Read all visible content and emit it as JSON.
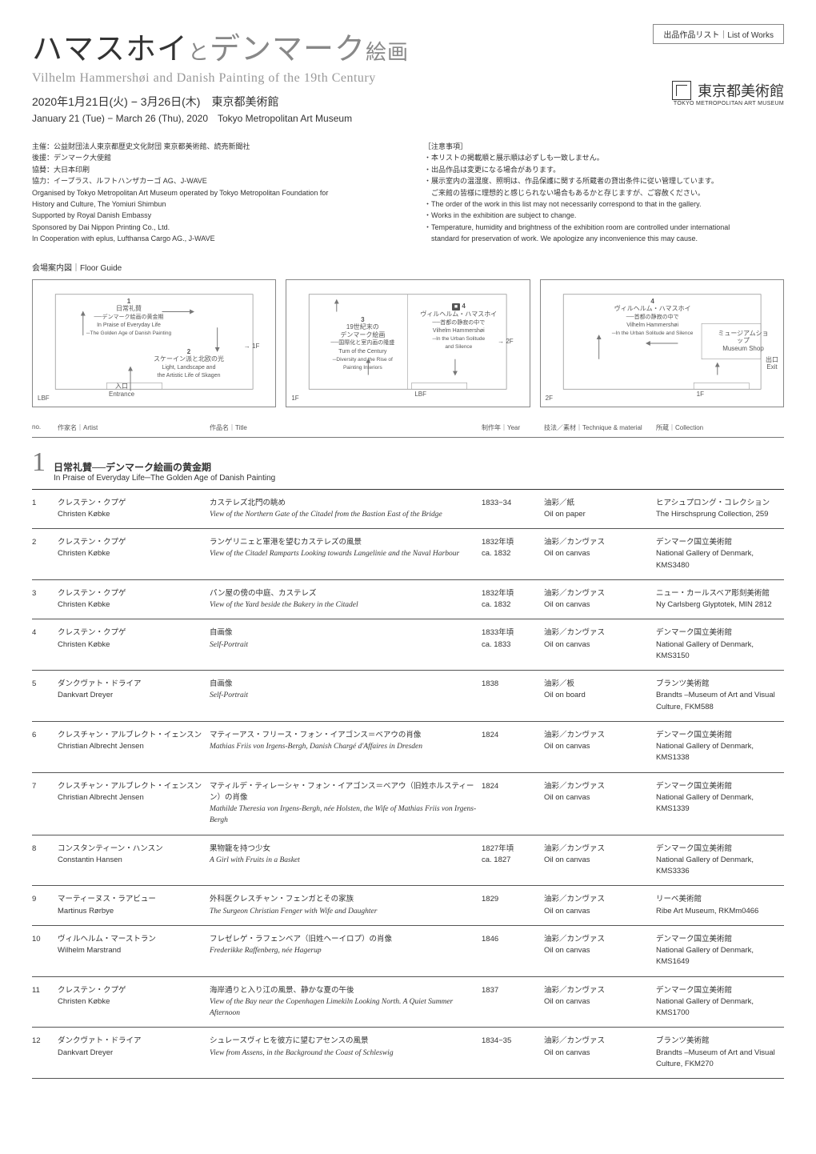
{
  "badge": "出品作品リスト｜List of Works",
  "title_jp_parts": {
    "main": "ハマスホイ",
    "to": "と",
    "danmark": "デンマーク",
    "kaiga": "絵画"
  },
  "subtitle_en": "Vilhelm Hammershøi and Danish Painting of the 19th Century",
  "dates_jp": "2020年1月21日(火) − 3月26日(木)　東京都美術館",
  "dates_en": "January 21 (Tue) − March 26 (Thu), 2020　Tokyo Metropolitan Art Museum",
  "museum": {
    "jp": "東京都美術館",
    "en": "TOKYO METROPOLITAN ART MUSEUM"
  },
  "credits_left": [
    "主催：公益財団法人東京都歴史文化財団 東京都美術館、読売新聞社",
    "後援：デンマーク大使館",
    "協賛：大日本印刷",
    "協力：イープラス、ルフトハンザカーゴ AG、J-WAVE",
    "Organised by Tokyo Metropolitan Art Museum operated by Tokyo Metropolitan Foundation for",
    "History and Culture, The Yomiuri Shimbun",
    "Supported by Royal Danish Embassy",
    "Sponsored by Dai Nippon Printing Co., Ltd.",
    "In Cooperation with eplus, Lufthansa Cargo AG., J-WAVE"
  ],
  "notes_header": "［注意事項］",
  "notes": [
    "・本リストの掲載順と展示順は必ずしも一致しません。",
    "・出品作品は変更になる場合があります。",
    "・展示室内の温湿度、照明は、作品保護に関する所蔵者の貸出条件に従い管理しています。",
    "　ご来館の皆様に理想的と感じられない場合もあるかと存じますが、ご容赦ください。",
    "・The order of the work in this list may not necessarily correspond to that in the gallery.",
    "・Works in the exhibition are subject to change.",
    "・Temperature, humidity and brightness of the exhibition room are controlled under international",
    "　standard for preservation of work. We apologize any inconvenience this may cause."
  ],
  "floor_guide_label": "会場案内図｜Floor Guide",
  "maps": {
    "lbf": {
      "floor": "LBF",
      "entrance": "入口\nEntrance",
      "rooms": [
        {
          "num": "1",
          "jp": "日常礼賛",
          "sub_jp": "──デンマーク絵画の黄金期",
          "en": "In Praise of Everyday Life",
          "sub_en": "─The Golden Age of Danish Painting"
        },
        {
          "num": "2",
          "jp": "スケーイン派と北欧の光",
          "en": "Light, Landscape and\nthe Artistic Life of Skagen"
        }
      ],
      "to": "→ 1F"
    },
    "f1": {
      "floor": "1F",
      "lbf": "LBF",
      "rooms": [
        {
          "num": "3",
          "jp": "19世紀末の\nデンマーク絵画",
          "sub_jp": "──国際化と室内画の隆盛",
          "en": "Turn of the Century",
          "sub_en": "─Diversity and the Rise of\nPainting Interiors"
        },
        {
          "num": "4",
          "jp": "ヴィルヘルム・ハマスホイ",
          "sub_jp": "──首都の静寂の中で",
          "en": "Vilhelm Hammershøi",
          "sub_en": "─In the Urban Solitude\nand Silence"
        }
      ],
      "to": "→ 2F"
    },
    "f2": {
      "floor": "2F",
      "from": "1F",
      "rooms": [
        {
          "num": "4",
          "jp": "ヴィルヘルム・ハマスホイ",
          "sub_jp": "──首都の静寂の中で",
          "en": "Vilhelm Hammershøi",
          "sub_en": "─In the Urban Solitude and Silence"
        }
      ],
      "shop": "ミュージアムショップ\nMuseum Shop",
      "exit": "出口\nExit"
    }
  },
  "columns": {
    "no": "no.",
    "artist": "作家名｜Artist",
    "title": "作品名｜Title",
    "year": "制作年｜Year",
    "technique": "技法／素材｜Technique & material",
    "collection": "所蔵｜Collection"
  },
  "section1": {
    "num": "1",
    "jp": "日常礼賛──デンマーク絵画の黄金期",
    "en": "In Praise of Everyday Life─The Golden Age of Danish Painting"
  },
  "works": [
    {
      "no": "1",
      "artist_jp": "クレステン・クプゲ",
      "artist_en": "Christen Købke",
      "title_jp": "カステレズ北門の眺め",
      "title_en": "View of the Northern Gate of the Citadel from the Bastion East of the Bridge",
      "year": "1833−34",
      "tech_jp": "油彩／紙",
      "tech_en": "Oil on paper",
      "coll_jp": "ヒアシュプロング・コレクション",
      "coll_en": "The Hirschsprung Collection, 259"
    },
    {
      "no": "2",
      "artist_jp": "クレステン・クプゲ",
      "artist_en": "Christen Købke",
      "title_jp": "ランゲリニェと軍港を望むカステレズの風景",
      "title_en": "View of the Citadel Ramparts Looking towards Langelinie and the Naval Harbour",
      "year": "1832年頃\nca. 1832",
      "tech_jp": "油彩／カンヴァス",
      "tech_en": "Oil on canvas",
      "coll_jp": "デンマーク国立美術館",
      "coll_en": "National Gallery of Denmark, KMS3480"
    },
    {
      "no": "3",
      "artist_jp": "クレステン・クプゲ",
      "artist_en": "Christen Købke",
      "title_jp": "パン屋の傍の中庭、カステレズ",
      "title_en": "View of the Yard beside the Bakery in the Citadel",
      "year": "1832年頃\nca. 1832",
      "tech_jp": "油彩／カンヴァス",
      "tech_en": "Oil on canvas",
      "coll_jp": "ニュー・カールスベア彫刻美術館",
      "coll_en": "Ny Carlsberg Glyptotek, MIN 2812"
    },
    {
      "no": "4",
      "artist_jp": "クレステン・クプゲ",
      "artist_en": "Christen Købke",
      "title_jp": "自画像",
      "title_en": "Self-Portrait",
      "year": "1833年頃\nca. 1833",
      "tech_jp": "油彩／カンヴァス",
      "tech_en": "Oil on canvas",
      "coll_jp": "デンマーク国立美術館",
      "coll_en": "National Gallery of Denmark, KMS3150"
    },
    {
      "no": "5",
      "artist_jp": "ダンクヴァト・ドライア",
      "artist_en": "Dankvart Dreyer",
      "title_jp": "自画像",
      "title_en": "Self-Portrait",
      "year": "1838",
      "tech_jp": "油彩／板",
      "tech_en": "Oil on board",
      "coll_jp": "ブランツ美術館",
      "coll_en": "Brandts –Museum of Art and Visual Culture, FKM588"
    },
    {
      "no": "6",
      "artist_jp": "クレスチャン・アルブレクト・イェンスン",
      "artist_en": "Christian Albrecht Jensen",
      "title_jp": "マティーアス・フリース・フォン・イアゴンス＝ベアウの肖像",
      "title_en": "Mathias Friis von Irgens-Bergh, Danish Chargé d'Affaires in Dresden",
      "year": "1824",
      "tech_jp": "油彩／カンヴァス",
      "tech_en": "Oil on canvas",
      "coll_jp": "デンマーク国立美術館",
      "coll_en": "National Gallery of Denmark, KMS1338"
    },
    {
      "no": "7",
      "artist_jp": "クレスチャン・アルブレクト・イェンスン",
      "artist_en": "Christian Albrecht Jensen",
      "title_jp": "マティルデ・ティレーシャ・フォン・イアゴンス＝ベアウ（旧姓ホルスティーン）の肖像",
      "title_en": "Mathilde Theresia von Irgens-Bergh, née Holsten, the Wife of Mathias Friis von Irgens-Bergh",
      "year": "1824",
      "tech_jp": "油彩／カンヴァス",
      "tech_en": "Oil on canvas",
      "coll_jp": "デンマーク国立美術館",
      "coll_en": "National Gallery of Denmark, KMS1339"
    },
    {
      "no": "8",
      "artist_jp": "コンスタンティーン・ハンスン",
      "artist_en": "Constantin Hansen",
      "title_jp": "果物籠を持つ少女",
      "title_en": "A Girl with Fruits in a Basket",
      "year": "1827年頃\nca. 1827",
      "tech_jp": "油彩／カンヴァス",
      "tech_en": "Oil on canvas",
      "coll_jp": "デンマーク国立美術館",
      "coll_en": "National Gallery of Denmark, KMS3336"
    },
    {
      "no": "9",
      "artist_jp": "マーティーヌス・ラアビュー",
      "artist_en": "Martinus Rørbye",
      "title_jp": "外科医クレスチャン・フェンガとその家族",
      "title_en": "The Surgeon Christian Fenger with Wife and Daughter",
      "year": "1829",
      "tech_jp": "油彩／カンヴァス",
      "tech_en": "Oil on canvas",
      "coll_jp": "リーベ美術館",
      "coll_en": "Ribe Art Museum, RKMm0466"
    },
    {
      "no": "10",
      "artist_jp": "ヴィルヘルム・マーストラン",
      "artist_en": "Wilhelm Marstrand",
      "title_jp": "フレゼレゲ・ラフェンベア（旧姓ヘーイロプ）の肖像",
      "title_en": "Frederikke Raffenberg, née Hagerup",
      "year": "1846",
      "tech_jp": "油彩／カンヴァス",
      "tech_en": "Oil on canvas",
      "coll_jp": "デンマーク国立美術館",
      "coll_en": "National Gallery of Denmark, KMS1649"
    },
    {
      "no": "11",
      "artist_jp": "クレステン・クプゲ",
      "artist_en": "Christen Købke",
      "title_jp": "海岸通りと入り江の風景、静かな夏の午後",
      "title_en": "View of the Bay near the Copenhagen Limekiln Looking North. A Quiet Summer Afternoon",
      "year": "1837",
      "tech_jp": "油彩／カンヴァス",
      "tech_en": "Oil on canvas",
      "coll_jp": "デンマーク国立美術館",
      "coll_en": "National Gallery of Denmark, KMS1700"
    },
    {
      "no": "12",
      "artist_jp": "ダンクヴァト・ドライア",
      "artist_en": "Dankvart Dreyer",
      "title_jp": "シュレースヴィヒを彼方に望むアセンスの風景",
      "title_en": "View from Assens, in the Background the Coast of Schleswig",
      "year": "1834−35",
      "tech_jp": "油彩／カンヴァス",
      "tech_en": "Oil on canvas",
      "coll_jp": "ブランツ美術館",
      "coll_en": "Brandts –Museum of Art and Visual Culture, FKM270"
    }
  ]
}
